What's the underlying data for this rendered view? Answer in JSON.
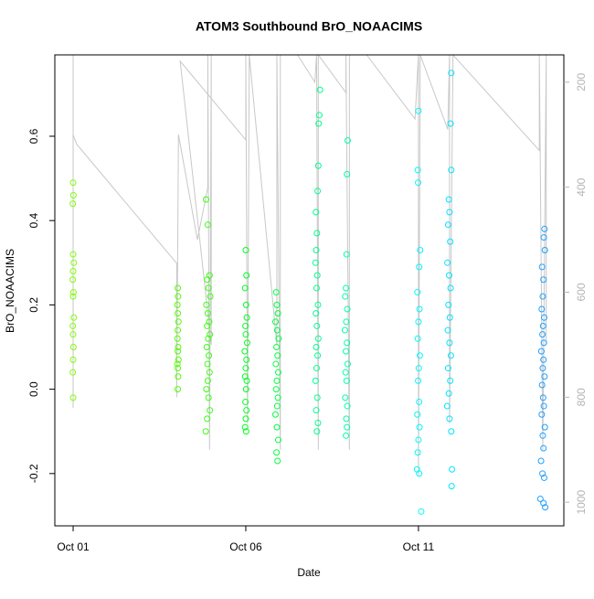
{
  "chart_data": {
    "type": "scatter",
    "title": "ATOM3 Southbound BrO_NOAACIMS",
    "x_label": "Date",
    "y_label": "BrO_NOAACIMS",
    "xlim": [
      0.47,
      15.21
    ],
    "xticks": [
      {
        "value": 1,
        "label": "Oct 01"
      },
      {
        "value": 6,
        "label": "Oct 06"
      },
      {
        "value": 11,
        "label": "Oct 11"
      }
    ],
    "ylim": [
      -0.324,
      0.793
    ],
    "yticks": [
      -0.2,
      {
        "value": 0,
        "label": "0.0"
      },
      0.2,
      0.4,
      0.6
    ],
    "y2lim": [
      1045,
      148
    ],
    "y2ticks": [
      200,
      400,
      600,
      800,
      1000
    ],
    "y2_color": "#b4b4b4",
    "series": [
      {
        "type": "line",
        "axis": "y2",
        "color": "#c8c8c8",
        "x": [
          1.0,
          1.0,
          1.0,
          1.1,
          4.0,
          4.0,
          4.05,
          4.6,
          4.9,
          4.9,
          4.95,
          5.0,
          5.0,
          4.1,
          6.0,
          6.0,
          6.05,
          6.1,
          6.9,
          6.9,
          7.0,
          7.0,
          7.5,
          8.0,
          8.05,
          8.1,
          8.1,
          8.9,
          8.9,
          9.0,
          9.0,
          9.5,
          10.9,
          11.0,
          11.0,
          11.05,
          11.85,
          11.9,
          11.9,
          12.0,
          14.5,
          14.5,
          14.6,
          14.7,
          14.7
        ],
        "values": [
          148,
          820,
          300,
          318,
          545,
          800,
          300,
          500,
          400,
          148,
          900,
          148,
          700,
          160,
          310,
          148,
          850,
          148,
          700,
          148,
          900,
          148,
          148,
          200,
          148,
          900,
          148,
          220,
          148,
          900,
          148,
          148,
          270,
          148,
          950,
          148,
          290,
          148,
          850,
          148,
          330,
          148,
          900,
          148,
          700
        ]
      },
      {
        "color": "#80ff00",
        "x": [
          1.0,
          1.01,
          0.99,
          1.0,
          1.02,
          1.0,
          0.99,
          1.01,
          1.0,
          1.02,
          0.99,
          1.0,
          1.01,
          1.0,
          0.99,
          1.0
        ],
        "values": [
          0.49,
          0.46,
          0.44,
          0.32,
          0.3,
          0.28,
          0.26,
          0.23,
          0.22,
          0.17,
          0.15,
          0.13,
          0.1,
          0.07,
          0.04,
          -0.02
        ]
      },
      {
        "color": "#50ff00",
        "x": [
          4.03,
          4.04,
          4.02,
          4.03,
          4.05,
          4.03,
          4.02,
          4.04,
          4.03,
          4.05,
          4.02,
          4.03,
          4.04,
          4.03
        ],
        "values": [
          0.24,
          0.22,
          0.2,
          0.18,
          0.16,
          0.14,
          0.12,
          0.1,
          0.09,
          0.07,
          0.06,
          0.05,
          0.03,
          0.0
        ]
      },
      {
        "color": "#38ff10",
        "x": [
          4.85,
          4.9,
          4.95,
          4.88,
          4.92,
          4.97,
          4.86,
          4.9,
          4.94,
          4.88,
          4.96,
          4.91,
          4.87,
          4.93,
          4.89,
          4.95,
          4.9,
          4.86,
          4.92,
          4.96,
          4.88,
          4.84
        ],
        "values": [
          0.45,
          0.39,
          0.27,
          0.26,
          0.24,
          0.22,
          0.2,
          0.18,
          0.16,
          0.15,
          0.13,
          0.12,
          0.1,
          0.08,
          0.06,
          0.04,
          0.02,
          0,
          -0.02,
          -0.05,
          -0.07,
          -0.1
        ]
      },
      {
        "color": "#00ff20",
        "x": [
          6.0,
          6.02,
          5.98,
          6.01,
          6.03,
          5.99,
          6.0,
          6.04,
          5.97,
          6.02,
          6.0,
          5.98,
          6.03,
          6.01,
          5.99,
          6.02,
          6.0,
          5.98,
          6.01
        ],
        "values": [
          0.33,
          0.27,
          0.24,
          0.2,
          0.17,
          0.15,
          0.13,
          0.11,
          0.09,
          0.07,
          0.05,
          0.03,
          0.02,
          0,
          -0.03,
          -0.05,
          -0.07,
          -0.09,
          -0.1
        ]
      },
      {
        "color": "#00ff40",
        "x": [
          6.88,
          6.9,
          6.93,
          6.86,
          6.91,
          6.95,
          6.89,
          6.92,
          6.87,
          6.94,
          6.9,
          6.88,
          6.93,
          6.91,
          6.86,
          6.9,
          6.94,
          6.89,
          6.92
        ],
        "values": [
          0.23,
          0.2,
          0.18,
          0.16,
          0.14,
          0.12,
          0.1,
          0.08,
          0.06,
          0.04,
          0.02,
          0,
          -0.02,
          -0.04,
          -0.06,
          -0.09,
          -0.12,
          -0.15,
          -0.17
        ]
      },
      {
        "color": "#00ff90",
        "x": [
          8.15,
          8.13,
          8.11,
          8.1,
          8.08,
          8.03,
          8.06,
          8.04,
          8.02,
          8.07,
          8.05,
          8.09,
          8.03,
          8.06,
          8.1,
          8.04,
          8.08,
          8.05,
          8.02,
          8.07,
          8.04,
          8.09,
          8.06
        ],
        "values": [
          0.71,
          0.65,
          0.63,
          0.53,
          0.47,
          0.42,
          0.37,
          0.33,
          0.3,
          0.27,
          0.24,
          0.2,
          0.18,
          0.15,
          0.12,
          0.1,
          0.08,
          0.05,
          0.02,
          -0.02,
          -0.05,
          -0.08,
          -0.1
        ]
      },
      {
        "color": "#00ffa8",
        "x": [
          8.95,
          8.93,
          8.92,
          8.9,
          8.88,
          8.94,
          8.91,
          8.87,
          8.93,
          8.9,
          8.95,
          8.89,
          8.92,
          8.88,
          8.94,
          8.91,
          8.93,
          8.9
        ],
        "values": [
          0.59,
          0.51,
          0.32,
          0.24,
          0.22,
          0.19,
          0.16,
          0.14,
          0.11,
          0.09,
          0.06,
          0.04,
          0.02,
          -0.02,
          -0.04,
          -0.07,
          -0.09,
          -0.11
        ]
      },
      {
        "color": "#00f8ff",
        "x": [
          11.0,
          10.98,
          10.99,
          11.05,
          11.02,
          10.97,
          11.03,
          11.0,
          10.98,
          11.04,
          11.01,
          10.99,
          11.02,
          10.97,
          11.03,
          11.0,
          10.98,
          10.96,
          11.02,
          11.08
        ],
        "values": [
          0.66,
          0.52,
          0.49,
          0.33,
          0.29,
          0.23,
          0.19,
          0.16,
          0.12,
          0.08,
          0.05,
          0.02,
          -0.03,
          -0.06,
          -0.09,
          -0.12,
          -0.15,
          -0.19,
          -0.2,
          -0.29
        ]
      },
      {
        "color": "#00e4ff",
        "x": [
          11.95,
          11.93,
          11.95,
          11.88,
          11.9,
          11.86,
          11.92,
          11.84,
          11.89,
          11.93,
          11.87,
          11.91,
          11.85,
          11.9,
          11.94,
          11.86,
          11.92,
          11.88,
          11.83,
          11.9,
          11.95,
          11.97,
          11.96
        ],
        "values": [
          0.75,
          0.63,
          0.52,
          0.45,
          0.42,
          0.39,
          0.35,
          0.3,
          0.27,
          0.24,
          0.2,
          0.17,
          0.14,
          0.11,
          0.08,
          0.05,
          0.02,
          -0.01,
          -0.04,
          -0.07,
          -0.1,
          -0.19,
          -0.23
        ]
      },
      {
        "color": "#20a0ff",
        "x": [
          14.65,
          14.63,
          14.66,
          14.58,
          14.62,
          14.6,
          14.57,
          14.64,
          14.61,
          14.59,
          14.63,
          14.56,
          14.62,
          14.6,
          14.65,
          14.58,
          14.61,
          14.63,
          14.57,
          14.66,
          14.6,
          14.62,
          14.55,
          14.59,
          14.64,
          14.53,
          14.62,
          14.67
        ],
        "values": [
          0.38,
          0.36,
          0.33,
          0.29,
          0.26,
          0.22,
          0.19,
          0.17,
          0.15,
          0.13,
          0.11,
          0.09,
          0.07,
          0.05,
          0.03,
          0.01,
          -0.02,
          -0.04,
          -0.06,
          -0.09,
          -0.11,
          -0.14,
          -0.17,
          -0.2,
          -0.21,
          -0.26,
          -0.27,
          -0.28
        ]
      }
    ]
  }
}
